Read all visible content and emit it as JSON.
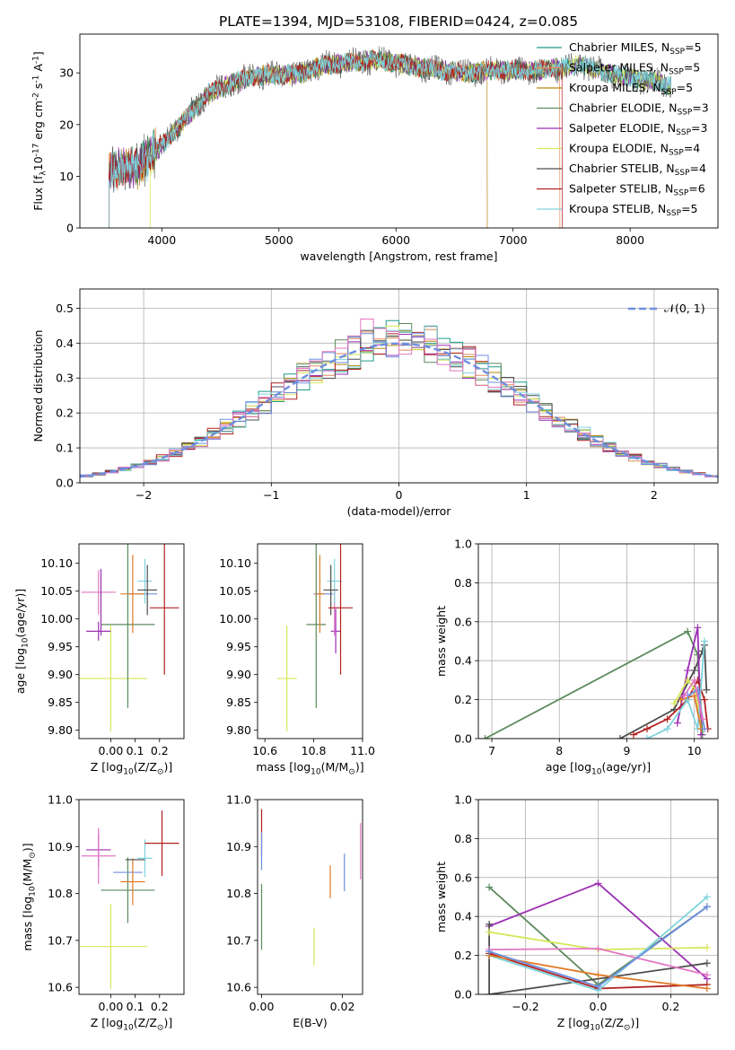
{
  "title": "PLATE=1394, MJD=53108, FIBERID=0424, z=0.085",
  "colors": {
    "Chabrier MILES": "#1f9e89",
    "Salpeter MILES": "#e48a5a",
    "Kroupa MILES": "#b8860b",
    "Chabrier ELODIE": "#5b8a5b",
    "Salpeter ELODIE": "#9c2fb4",
    "Kroupa ELODIE": "#d6e65a",
    "Chabrier STELIB": "#4d4d4d",
    "Salpeter STELIB": "#b22222",
    "Kroupa STELIB": "#7fd3dc",
    "extra_blue": "#6d8fe0",
    "extra_pink": "#e377c2",
    "extra_orange": "#e07b29",
    "gauss": "#6d8fe0"
  },
  "chart_data": [
    {
      "type": "line",
      "name": "spectrum",
      "xlabel": "wavelength [Angstrom, rest frame]",
      "ylabel": "Flux [f$_\\lambda$10$^{-17}$ erg cm$^{-2}$ s$^{-1}$ A$^{-1}$]",
      "xlim": [
        3300,
        8750
      ],
      "ylim": [
        0,
        37.5
      ],
      "xticks": [
        4000,
        5000,
        6000,
        7000,
        8000
      ],
      "yticks": [
        0,
        10,
        20,
        30
      ],
      "legend_position": "top-right",
      "legend": [
        {
          "label": "Chabrier MILES, N",
          "sub": "SSP",
          "tail": "=5"
        },
        {
          "label": "Salpeter MILES, N",
          "sub": "SSP",
          "tail": "=5"
        },
        {
          "label": "Kroupa MILES, N",
          "sub": "SSP",
          "tail": "=5"
        },
        {
          "label": "Chabrier ELODIE, N",
          "sub": "SSP",
          "tail": "=3"
        },
        {
          "label": "Salpeter ELODIE, N",
          "sub": "SSP",
          "tail": "=3"
        },
        {
          "label": "Kroupa ELODIE, N",
          "sub": "SSP",
          "tail": "=4"
        },
        {
          "label": "Chabrier STELIB, N",
          "sub": "SSP",
          "tail": "=4"
        },
        {
          "label": "Salpeter STELIB, N",
          "sub": "SSP",
          "tail": "=6"
        },
        {
          "label": "Kroupa STELIB, N",
          "sub": "SSP",
          "tail": "=5"
        }
      ],
      "continuum": {
        "x": [
          3550,
          3800,
          4000,
          4200,
          4400,
          4600,
          4800,
          5000,
          5200,
          5400,
          5600,
          5800,
          6000,
          6200,
          6400,
          6600,
          6800,
          7000,
          7200,
          7400,
          7600,
          7800,
          8000,
          8200,
          8350
        ],
        "y": [
          11,
          12,
          16,
          21,
          26,
          28,
          29.5,
          29.5,
          30,
          31.5,
          32,
          32.5,
          32,
          31,
          30.5,
          30,
          30.5,
          30.5,
          30.5,
          31,
          31.5,
          30,
          29,
          28.5,
          27.5
        ]
      }
    },
    {
      "type": "step",
      "name": "residual-histogram",
      "xlabel": "(data-model)/error",
      "ylabel": "Normed distribution",
      "xlim": [
        -2.5,
        2.5
      ],
      "ylim": [
        0,
        0.555
      ],
      "xticks": [
        -2,
        -1,
        0,
        1,
        2
      ],
      "yticks": [
        0.0,
        0.1,
        0.2,
        0.3,
        0.4,
        0.5
      ],
      "legend_position": "top-right",
      "gauss_label": "𝒩(0, 1)",
      "bin_width": 0.1
    },
    {
      "type": "errorbar",
      "name": "age-vs-Z",
      "xlabel": "Z [log$_{10}$(Z/Z$_\\odot$)]",
      "ylabel": "age  [log$_{10}$(age/yr)]",
      "xlim": [
        -0.13,
        0.3
      ],
      "ylim": [
        9.785,
        10.135
      ],
      "xticks": [
        0.0,
        0.1,
        0.2
      ],
      "xticklabels": [
        "0.00",
        "0.1",
        "0.2"
      ],
      "yticks": [
        9.8,
        9.85,
        9.9,
        9.95,
        10.0,
        10.05,
        10.1
      ],
      "points": [
        {
          "c": "Kroupa ELODIE",
          "x": 0.0,
          "xerr": 0.15,
          "y": 9.893,
          "yerr": 0.095
        },
        {
          "c": "Chabrier ELODIE",
          "x": 0.07,
          "xerr": 0.11,
          "y": 9.99,
          "yerr": 0.15
        },
        {
          "c": "Salpeter ELODIE",
          "x": -0.05,
          "xerr": 0.05,
          "y": 9.978,
          "yerr": 0.017
        },
        {
          "c": "extra_pink",
          "x": -0.05,
          "xerr": 0.07,
          "y": 10.048,
          "yerr": 0.04
        },
        {
          "c": "Salpeter ELODIE",
          "x": -0.04,
          "xerr": 0.0,
          "y": 10.03,
          "yerr": 0.06
        },
        {
          "c": "extra_blue",
          "x": 0.13,
          "xerr": 0.06,
          "y": 10.045,
          "yerr": 0.0
        },
        {
          "c": "extra_orange",
          "x": 0.09,
          "xerr": 0.05,
          "y": 10.045,
          "yerr": 0.07
        },
        {
          "c": "Kroupa STELIB",
          "x": 0.14,
          "xerr": 0.03,
          "y": 10.068,
          "yerr": 0.04
        },
        {
          "c": "Chabrier STELIB",
          "x": 0.15,
          "xerr": 0.04,
          "y": 10.052,
          "yerr": 0.045
        },
        {
          "c": "Salpeter STELIB",
          "x": 0.22,
          "xerr": 0.06,
          "y": 10.02,
          "yerr": 0.12
        }
      ]
    },
    {
      "type": "errorbar",
      "name": "age-vs-mass",
      "xlabel": "mass [log$_{10}$(M/M$_\\odot$)]",
      "ylabel": "",
      "xlim": [
        10.57,
        11.0
      ],
      "ylim": [
        9.785,
        10.135
      ],
      "xticks": [
        10.6,
        10.8,
        11.0
      ],
      "yticks": [
        9.8,
        9.85,
        9.9,
        9.95,
        10.0,
        10.05,
        10.1
      ],
      "points": [
        {
          "c": "Kroupa ELODIE",
          "x": 10.69,
          "xerr": 0.04,
          "y": 9.893,
          "yerr": 0.095
        },
        {
          "c": "Chabrier ELODIE",
          "x": 10.81,
          "xerr": 0.04,
          "y": 9.99,
          "yerr": 0.15
        },
        {
          "c": "Salpeter ELODIE",
          "x": 10.89,
          "xerr": 0.02,
          "y": 9.978,
          "yerr": 0.04
        },
        {
          "c": "extra_pink",
          "x": 10.885,
          "xerr": 0.0,
          "y": 10.01,
          "yerr": 0.04
        },
        {
          "c": "extra_blue",
          "x": 10.84,
          "xerr": 0.04,
          "y": 10.045,
          "yerr": 0.0
        },
        {
          "c": "extra_orange",
          "x": 10.825,
          "xerr": 0.02,
          "y": 10.045,
          "yerr": 0.07
        },
        {
          "c": "Kroupa STELIB",
          "x": 10.885,
          "xerr": 0.03,
          "y": 10.068,
          "yerr": 0.04
        },
        {
          "c": "Chabrier STELIB",
          "x": 10.87,
          "xerr": 0.03,
          "y": 10.052,
          "yerr": 0.045
        },
        {
          "c": "Salpeter STELIB",
          "x": 10.91,
          "xerr": 0.05,
          "y": 10.02,
          "yerr": 0.12
        }
      ]
    },
    {
      "type": "line",
      "name": "mass-weight-vs-age",
      "xlabel": "age  [log$_{10}$(age/yr)]",
      "ylabel": "mass weight",
      "xlim": [
        6.8,
        10.35
      ],
      "ylim": [
        0,
        1.0
      ],
      "xticks": [
        7,
        8,
        9,
        10
      ],
      "yticks": [
        0.0,
        0.2,
        0.4,
        0.6,
        0.8,
        1.0
      ],
      "series": [
        {
          "c": "Chabrier ELODIE",
          "x": [
            6.9,
            9.9,
            10.05,
            10.12
          ],
          "y": [
            0.0,
            0.55,
            0.43,
            0.02
          ]
        },
        {
          "c": "Chabrier STELIB",
          "x": [
            8.9,
            9.7,
            10.0,
            10.12,
            10.15,
            10.18
          ],
          "y": [
            0.0,
            0.15,
            0.35,
            0.45,
            0.48,
            0.25
          ]
        },
        {
          "c": "Salpeter ELODIE",
          "x": [
            9.75,
            9.9,
            10.05,
            10.1
          ],
          "y": [
            0.08,
            0.35,
            0.57,
            0.02
          ]
        },
        {
          "c": "Salpeter STELIB",
          "x": [
            9.1,
            9.3,
            9.6,
            9.9,
            10.05,
            10.15,
            10.2
          ],
          "y": [
            0.02,
            0.05,
            0.1,
            0.2,
            0.3,
            0.2,
            0.05
          ]
        },
        {
          "c": "Kroupa ELODIE",
          "x": [
            9.7,
            9.9,
            10.02,
            10.1
          ],
          "y": [
            0.18,
            0.3,
            0.25,
            0.05
          ]
        },
        {
          "c": "Kroupa STELIB",
          "x": [
            9.3,
            9.6,
            9.9,
            10.05,
            10.15
          ],
          "y": [
            0.0,
            0.05,
            0.2,
            0.05,
            0.5
          ]
        },
        {
          "c": "extra_orange",
          "x": [
            9.8,
            10.0,
            10.1
          ],
          "y": [
            0.2,
            0.22,
            0.05
          ]
        },
        {
          "c": "extra_blue",
          "x": [
            9.9,
            10.05,
            10.15
          ],
          "y": [
            0.22,
            0.25,
            0.05
          ]
        },
        {
          "c": "extra_pink",
          "x": [
            9.85,
            10.0,
            10.12
          ],
          "y": [
            0.22,
            0.3,
            0.1
          ]
        }
      ]
    },
    {
      "type": "errorbar",
      "name": "mass-vs-Z",
      "xlabel": "Z [log$_{10}$(Z/Z$_\\odot$)]",
      "ylabel": "mass [log$_{10}$(M/M$_\\odot$)]",
      "xlim": [
        -0.13,
        0.3
      ],
      "ylim": [
        10.585,
        11.0
      ],
      "xticks": [
        0.0,
        0.1,
        0.2
      ],
      "xticklabels": [
        "0.00",
        "0.1",
        "0.2"
      ],
      "yticks": [
        10.6,
        10.7,
        10.8,
        10.9,
        11.0
      ],
      "points": [
        {
          "c": "Kroupa ELODIE",
          "x": 0.0,
          "xerr": 0.15,
          "y": 10.687,
          "yerr": 0.09
        },
        {
          "c": "Chabrier ELODIE",
          "x": 0.07,
          "xerr": 0.11,
          "y": 10.807,
          "yerr": 0.07
        },
        {
          "c": "Salpeter ELODIE",
          "x": -0.05,
          "xerr": 0.05,
          "y": 10.893,
          "yerr": 0.035
        },
        {
          "c": "extra_pink",
          "x": -0.05,
          "xerr": 0.07,
          "y": 10.88,
          "yerr": 0.06
        },
        {
          "c": "extra_blue",
          "x": 0.07,
          "xerr": 0.06,
          "y": 10.845,
          "yerr": 0.0
        },
        {
          "c": "extra_orange",
          "x": 0.09,
          "xerr": 0.05,
          "y": 10.825,
          "yerr": 0.05
        },
        {
          "c": "Kroupa STELIB",
          "x": 0.14,
          "xerr": 0.03,
          "y": 10.875,
          "yerr": 0.04
        },
        {
          "c": "Chabrier STELIB",
          "x": 0.1,
          "xerr": 0.04,
          "y": 10.872,
          "yerr": 0.0
        },
        {
          "c": "Salpeter STELIB",
          "x": 0.21,
          "xerr": 0.07,
          "y": 10.907,
          "yerr": 0.07
        }
      ]
    },
    {
      "type": "errorbar",
      "name": "mass-vs-EBV",
      "xlabel": "E(B-V)",
      "ylabel": "",
      "xlim": [
        -0.001,
        0.025
      ],
      "ylim": [
        10.585,
        11.0
      ],
      "xticks": [
        0.0,
        0.02
      ],
      "xticklabels": [
        "0.00",
        "0.02"
      ],
      "yticks": [
        10.6,
        10.7,
        10.8,
        10.9,
        11.0
      ],
      "points": [
        {
          "c": "Salpeter STELIB",
          "x": 0.0,
          "xerr": 0.0,
          "y": 10.93,
          "yerr": 0.05
        },
        {
          "c": "Chabrier ELODIE",
          "x": 0.0,
          "xerr": 0.0,
          "y": 10.75,
          "yerr": 0.07
        },
        {
          "c": "extra_blue",
          "x": 0.0,
          "xerr": 0.0,
          "y": 10.89,
          "yerr": 0.04
        },
        {
          "c": "Kroupa ELODIE",
          "x": 0.013,
          "xerr": 0.0,
          "y": 10.687,
          "yerr": 0.04
        },
        {
          "c": "extra_orange",
          "x": 0.017,
          "xerr": 0.0,
          "y": 10.825,
          "yerr": 0.035
        },
        {
          "c": "extra_blue",
          "x": 0.0205,
          "xerr": 0.0,
          "y": 10.845,
          "yerr": 0.04
        },
        {
          "c": "extra_pink",
          "x": 0.0245,
          "xerr": 0.0,
          "y": 10.89,
          "yerr": 0.06
        }
      ]
    },
    {
      "type": "line",
      "name": "mass-weight-vs-Z",
      "xlabel": "Z [log$_{10}$(Z/Z$_\\odot$)]",
      "ylabel": "mass weight",
      "xlim": [
        -0.33,
        0.33
      ],
      "ylim": [
        0,
        1.0
      ],
      "xticks": [
        -0.2,
        0.0,
        0.2
      ],
      "xticklabels": [
        "−0.2",
        "0.0",
        "0.2"
      ],
      "yticks": [
        0.0,
        0.2,
        0.4,
        0.6,
        0.8,
        1.0
      ],
      "series": [
        {
          "c": "Chabrier ELODIE",
          "x": [
            -0.3,
            0.0,
            0.3
          ],
          "y": [
            0.55,
            0.05,
            0.45
          ]
        },
        {
          "c": "Salpeter ELODIE",
          "x": [
            -0.3,
            0.0,
            0.3
          ],
          "y": [
            0.35,
            0.57,
            0.08
          ]
        },
        {
          "c": "Chabrier STELIB",
          "x": [
            -0.3,
            -0.3,
            0.3
          ],
          "y": [
            0.36,
            0.0,
            0.16
          ]
        },
        {
          "c": "Salpeter STELIB",
          "x": [
            -0.3,
            0.0,
            0.3
          ],
          "y": [
            0.21,
            0.03,
            0.05
          ]
        },
        {
          "c": "Kroupa ELODIE",
          "x": [
            -0.3,
            0.0,
            0.3
          ],
          "y": [
            0.32,
            0.23,
            0.24
          ]
        },
        {
          "c": "Kroupa STELIB",
          "x": [
            -0.3,
            0.0,
            0.3
          ],
          "y": [
            0.2,
            0.02,
            0.5
          ]
        },
        {
          "c": "extra_pink",
          "x": [
            -0.3,
            0.0,
            0.3
          ],
          "y": [
            0.23,
            0.235,
            0.1
          ]
        },
        {
          "c": "extra_orange",
          "x": [
            -0.3,
            0.0,
            0.3
          ],
          "y": [
            0.2,
            0.1,
            0.03
          ]
        },
        {
          "c": "extra_blue",
          "x": [
            -0.3,
            0.0,
            0.3
          ],
          "y": [
            0.22,
            0.04,
            0.45
          ]
        }
      ]
    }
  ]
}
